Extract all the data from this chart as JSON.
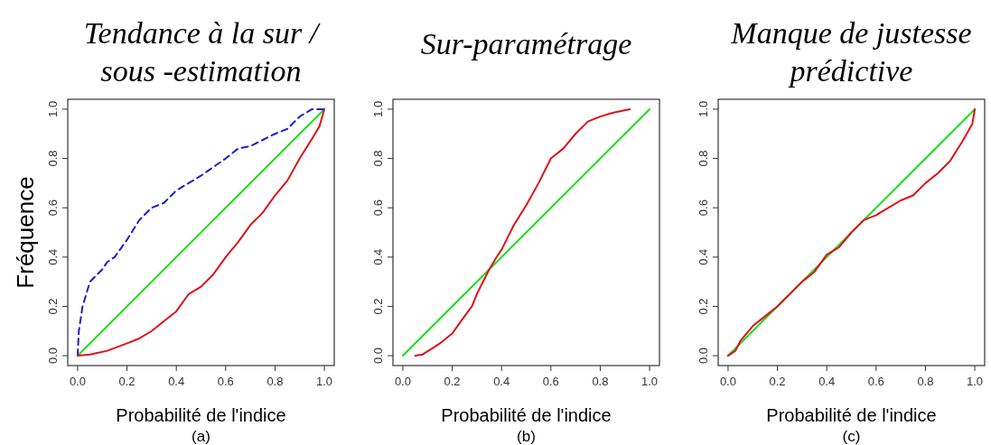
{
  "chart_data": [
    {
      "type": "line",
      "title": "Tendance à la sur / sous -estimation",
      "xlabel": "Probabilité de l'indice",
      "ylabel": "Fréquence",
      "annotations": [
        "(a)"
      ],
      "xlim": [
        -0.04,
        1.04
      ],
      "ylim": [
        -0.04,
        1.04
      ],
      "xticks": [
        {
          "value": 0,
          "label": "0.0"
        },
        {
          "value": 0.2,
          "label": "0.2"
        },
        {
          "value": 0.4,
          "label": "0.4"
        },
        {
          "value": 0.6,
          "label": "0.6"
        },
        {
          "value": 0.8,
          "label": "0.8"
        },
        {
          "value": 1,
          "label": "1.0"
        }
      ],
      "yticks": [
        {
          "value": 0,
          "label": "0.0"
        },
        {
          "value": 0.2,
          "label": "0.2"
        },
        {
          "value": 0.4,
          "label": "0.4"
        },
        {
          "value": 0.6,
          "label": "0.6"
        },
        {
          "value": 0.8,
          "label": "0.8"
        },
        {
          "value": 1,
          "label": "1.0"
        }
      ],
      "grid": false,
      "series": [
        {
          "color": "#22dd22",
          "line_style": "solid",
          "x": [
            0,
            1
          ],
          "values": [
            0,
            1
          ]
        },
        {
          "color": "#1f1fcc",
          "line_style": "dashed",
          "x": [
            0,
            0.005,
            0.02,
            0.05,
            0.1,
            0.12,
            0.15,
            0.2,
            0.25,
            0.3,
            0.35,
            0.4,
            0.5,
            0.6,
            0.65,
            0.7,
            0.8,
            0.85,
            0.9,
            0.95,
            1
          ],
          "values": [
            0,
            0.1,
            0.2,
            0.3,
            0.35,
            0.38,
            0.4,
            0.47,
            0.55,
            0.6,
            0.62,
            0.67,
            0.73,
            0.8,
            0.84,
            0.85,
            0.9,
            0.92,
            0.97,
            1,
            1
          ]
        },
        {
          "color": "#e0101a",
          "line_style": "solid",
          "x": [
            0,
            0.05,
            0.12,
            0.2,
            0.25,
            0.3,
            0.35,
            0.4,
            0.45,
            0.5,
            0.55,
            0.6,
            0.65,
            0.7,
            0.75,
            0.8,
            0.85,
            0.9,
            0.95,
            0.98,
            1
          ],
          "values": [
            0,
            0.005,
            0.02,
            0.05,
            0.07,
            0.1,
            0.14,
            0.18,
            0.25,
            0.28,
            0.33,
            0.4,
            0.46,
            0.53,
            0.58,
            0.65,
            0.71,
            0.8,
            0.88,
            0.93,
            1
          ]
        }
      ]
    },
    {
      "type": "line",
      "title": "Sur-paramétrage",
      "xlabel": "Probabilité de l'indice",
      "annotations": [
        "(b)"
      ],
      "xlim": [
        -0.04,
        1.04
      ],
      "ylim": [
        -0.04,
        1.04
      ],
      "xticks": [
        {
          "value": 0,
          "label": "0.0"
        },
        {
          "value": 0.2,
          "label": "0.2"
        },
        {
          "value": 0.4,
          "label": "0.4"
        },
        {
          "value": 0.6,
          "label": "0.6"
        },
        {
          "value": 0.8,
          "label": "0.8"
        },
        {
          "value": 1,
          "label": "1.0"
        }
      ],
      "yticks": [
        {
          "value": 0,
          "label": "0.0"
        },
        {
          "value": 0.2,
          "label": "0.2"
        },
        {
          "value": 0.4,
          "label": "0.4"
        },
        {
          "value": 0.6,
          "label": "0.6"
        },
        {
          "value": 0.8,
          "label": "0.8"
        },
        {
          "value": 1,
          "label": "1.0"
        }
      ],
      "grid": false,
      "series": [
        {
          "color": "#22dd22",
          "line_style": "solid",
          "x": [
            0,
            1
          ],
          "values": [
            0,
            1
          ]
        },
        {
          "color": "#e0101a",
          "line_style": "solid",
          "x": [
            0.05,
            0.08,
            0.12,
            0.15,
            0.2,
            0.25,
            0.28,
            0.3,
            0.35,
            0.38,
            0.4,
            0.45,
            0.5,
            0.55,
            0.6,
            0.65,
            0.7,
            0.75,
            0.8,
            0.85,
            0.92
          ],
          "values": [
            0,
            0.005,
            0.03,
            0.05,
            0.09,
            0.16,
            0.2,
            0.25,
            0.35,
            0.4,
            0.43,
            0.53,
            0.61,
            0.7,
            0.8,
            0.84,
            0.9,
            0.95,
            0.97,
            0.985,
            1
          ]
        }
      ]
    },
    {
      "type": "line",
      "title": "Manque de justesse prédictive",
      "xlabel": "Probabilité de l'indice",
      "annotations": [
        "(c)"
      ],
      "xlim": [
        -0.04,
        1.04
      ],
      "ylim": [
        -0.04,
        1.04
      ],
      "xticks": [
        {
          "value": 0,
          "label": "0.0"
        },
        {
          "value": 0.2,
          "label": "0.2"
        },
        {
          "value": 0.4,
          "label": "0.4"
        },
        {
          "value": 0.6,
          "label": "0.6"
        },
        {
          "value": 0.8,
          "label": "0.8"
        },
        {
          "value": 1,
          "label": "1.0"
        }
      ],
      "yticks": [
        {
          "value": 0,
          "label": "0.0"
        },
        {
          "value": 0.2,
          "label": "0.2"
        },
        {
          "value": 0.4,
          "label": "0.4"
        },
        {
          "value": 0.6,
          "label": "0.6"
        },
        {
          "value": 0.8,
          "label": "0.8"
        },
        {
          "value": 1,
          "label": "1.0"
        }
      ],
      "grid": false,
      "series": [
        {
          "color": "#22dd22",
          "line_style": "solid",
          "x": [
            0,
            1
          ],
          "values": [
            0,
            1
          ]
        },
        {
          "color": "#e0101a",
          "line_style": "solid",
          "x": [
            0,
            0.03,
            0.05,
            0.1,
            0.15,
            0.2,
            0.3,
            0.35,
            0.4,
            0.45,
            0.5,
            0.55,
            0.6,
            0.65,
            0.7,
            0.75,
            0.8,
            0.85,
            0.9,
            0.95,
            0.99,
            1
          ],
          "values": [
            0,
            0.02,
            0.06,
            0.12,
            0.16,
            0.2,
            0.3,
            0.34,
            0.41,
            0.44,
            0.5,
            0.55,
            0.57,
            0.6,
            0.63,
            0.65,
            0.7,
            0.74,
            0.79,
            0.87,
            0.94,
            1
          ]
        }
      ]
    }
  ]
}
